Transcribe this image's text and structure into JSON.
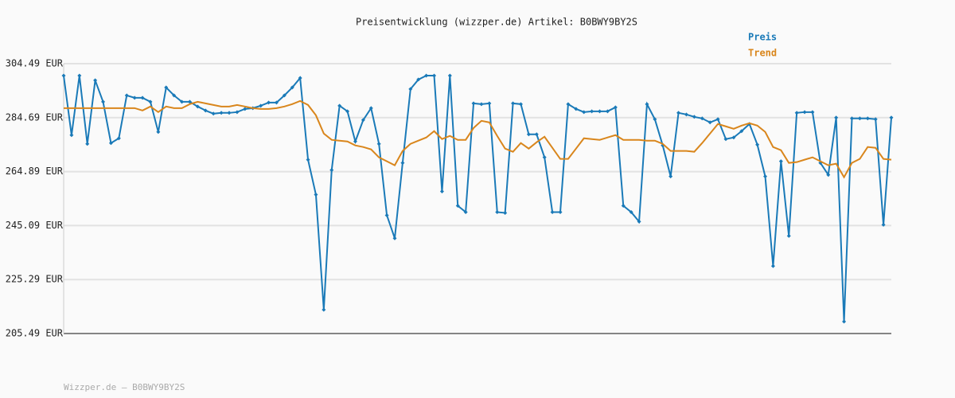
{
  "chart_data": {
    "type": "line",
    "title": "Preisentwicklung (wizzper.de) Artikel: B0BWY9BY2S",
    "footer": "Wizzper.de – B0BWY9BY2S",
    "ylim": [
      205.49,
      304.49
    ],
    "yticks": [
      {
        "value": 205.49,
        "label": "205.49 EUR"
      },
      {
        "value": 225.29,
        "label": "225.29 EUR"
      },
      {
        "value": 245.09,
        "label": "245.09 EUR"
      },
      {
        "value": 264.89,
        "label": "264.89 EUR"
      },
      {
        "value": 284.69,
        "label": "284.69 EUR"
      },
      {
        "value": 304.49,
        "label": "304.49 EUR"
      }
    ],
    "grid": true,
    "series": [
      {
        "name": "Preis",
        "color": "#1a7ab8",
        "markers": true,
        "values": [
          300.12,
          278.28,
          300.12,
          275.08,
          298.38,
          290.51,
          275.37,
          277.12,
          292.84,
          291.97,
          291.97,
          290.51,
          279.45,
          295.75,
          292.84,
          290.51,
          290.51,
          288.77,
          287.31,
          286.15,
          286.44,
          286.44,
          286.73,
          287.89,
          288.18,
          289.06,
          290.22,
          290.22,
          292.84,
          295.75,
          299.25,
          269.26,
          256.45,
          214.22,
          265.47,
          289.06,
          287.02,
          275.95,
          283.82,
          288.18,
          275.08,
          248.87,
          240.43,
          268.09,
          295.17,
          298.67,
          300.12,
          300.12,
          257.61,
          300.12,
          252.37,
          250.04,
          289.93,
          289.64,
          289.93,
          250.04,
          249.75,
          289.93,
          289.64,
          278.57,
          278.57,
          270.13,
          250.04,
          250.04,
          289.64,
          287.89,
          286.73,
          287.02,
          287.02,
          287.02,
          288.48,
          252.37,
          250.04,
          246.55,
          289.64,
          284.11,
          274.5,
          263.14,
          286.44,
          285.85,
          284.98,
          284.4,
          282.94,
          284.11,
          276.83,
          277.41,
          279.74,
          282.36,
          274.79,
          263.14,
          230.24,
          268.67,
          241.3,
          286.44,
          286.73,
          286.73,
          268.09,
          263.72,
          284.69,
          209.86,
          284.4,
          284.4,
          284.4,
          284.11,
          245.38,
          284.69
        ]
      },
      {
        "name": "Trend",
        "color": "#d9861c",
        "markers": false,
        "values": [
          288.18,
          288.18,
          288.18,
          288.18,
          288.18,
          288.18,
          288.18,
          288.18,
          288.18,
          288.18,
          287.31,
          288.77,
          286.73,
          288.77,
          288.18,
          288.18,
          289.64,
          290.51,
          289.93,
          289.35,
          288.77,
          288.77,
          289.35,
          288.77,
          288.18,
          287.89,
          287.89,
          288.18,
          288.77,
          289.64,
          290.8,
          289.35,
          285.56,
          278.87,
          276.54,
          276.25,
          275.95,
          274.5,
          273.92,
          273.04,
          270.13,
          268.67,
          267.22,
          272.46,
          275.08,
          276.25,
          277.41,
          279.74,
          276.83,
          277.99,
          276.54,
          276.54,
          280.9,
          283.53,
          282.94,
          277.99,
          273.33,
          272.17,
          275.37,
          273.33,
          275.66,
          277.7,
          273.62,
          269.55,
          269.55,
          273.33,
          277.12,
          276.83,
          276.54,
          277.41,
          278.28,
          276.54,
          276.54,
          276.54,
          276.25,
          276.25,
          275.08,
          272.46,
          272.46,
          272.46,
          272.17,
          275.37,
          278.87,
          282.36,
          281.49,
          280.61,
          281.78,
          282.65,
          281.78,
          279.45,
          273.92,
          272.75,
          268.09,
          268.38,
          269.26,
          270.13,
          268.67,
          267.22,
          267.8,
          262.85,
          268.09,
          269.55,
          273.92,
          273.62,
          269.55,
          269.26
        ]
      }
    ]
  }
}
